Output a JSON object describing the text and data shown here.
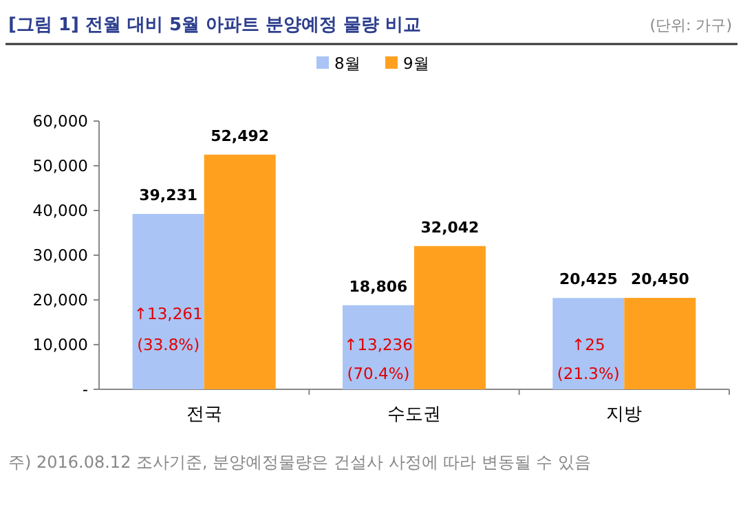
{
  "chart_data": {
    "type": "bar",
    "title": "[그림 1] 전월 대비 5월 아파트 분양예정 물량 비교",
    "subtitle": "(단위: 가구)",
    "categories": [
      "전국",
      "수도권",
      "지방"
    ],
    "series": [
      {
        "name": "8월",
        "color": "#a9c4f5",
        "values": [
          39231,
          18806,
          20425
        ],
        "value_labels": [
          "39,231",
          "18,806",
          "20,425"
        ]
      },
      {
        "name": "9월",
        "color": "#ffa11f",
        "values": [
          52492,
          32042,
          20450
        ],
        "value_labels": [
          "52,492",
          "32,042",
          "20,450"
        ]
      }
    ],
    "ylim": [
      0,
      60000
    ],
    "yticks": [
      {
        "value": 0,
        "label": "-"
      },
      {
        "value": 10000,
        "label": "10,000"
      },
      {
        "value": 20000,
        "label": "20,000"
      },
      {
        "value": 30000,
        "label": "30,000"
      },
      {
        "value": 40000,
        "label": "40,000"
      },
      {
        "value": 50000,
        "label": "50,000"
      },
      {
        "value": 60000,
        "label": "60,000"
      }
    ],
    "legend": "top",
    "grid": false,
    "annotations": [
      {
        "text": "↑13,261",
        "x": "전국",
        "y": 17000
      },
      {
        "text": "(33.8%)",
        "x": "전국",
        "y": 10000
      },
      {
        "text": "↑13,236",
        "x": "수도권",
        "y": 10000
      },
      {
        "text": "(70.4%)",
        "x": "수도권",
        "y": 3500
      },
      {
        "text": "↑25",
        "x": "지방",
        "y": 10000
      },
      {
        "text": "(21.3%)",
        "x": "지방",
        "y": 3500
      },
      "주) 2016.08.12 조사기준, 분양예정물량은 건설사 사정에 따라 변동될 수 있음"
    ]
  }
}
